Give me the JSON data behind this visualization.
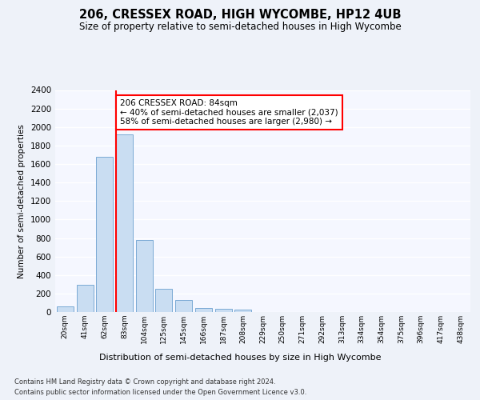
{
  "title": "206, CRESSEX ROAD, HIGH WYCOMBE, HP12 4UB",
  "subtitle": "Size of property relative to semi-detached houses in High Wycombe",
  "xlabel": "Distribution of semi-detached houses by size in High Wycombe",
  "ylabel": "Number of semi-detached properties",
  "bar_labels": [
    "20sqm",
    "41sqm",
    "62sqm",
    "83sqm",
    "104sqm",
    "125sqm",
    "145sqm",
    "166sqm",
    "187sqm",
    "208sqm",
    "229sqm",
    "250sqm",
    "271sqm",
    "292sqm",
    "313sqm",
    "334sqm",
    "354sqm",
    "375sqm",
    "396sqm",
    "417sqm",
    "438sqm"
  ],
  "bar_values": [
    60,
    290,
    1680,
    1920,
    780,
    255,
    130,
    40,
    35,
    30,
    0,
    0,
    0,
    0,
    0,
    0,
    0,
    0,
    0,
    0,
    0
  ],
  "bar_color": "#c9ddf2",
  "bar_edge_color": "#7aaad4",
  "annotation_text": "206 CRESSEX ROAD: 84sqm\n← 40% of semi-detached houses are smaller (2,037)\n58% of semi-detached houses are larger (2,980) →",
  "ylim": [
    0,
    2400
  ],
  "yticks": [
    0,
    200,
    400,
    600,
    800,
    1000,
    1200,
    1400,
    1600,
    1800,
    2000,
    2200,
    2400
  ],
  "footer_line1": "Contains HM Land Registry data © Crown copyright and database right 2024.",
  "footer_line2": "Contains public sector information licensed under the Open Government Licence v3.0.",
  "bg_color": "#eef2f9",
  "plot_bg_color": "#f5f7ff"
}
